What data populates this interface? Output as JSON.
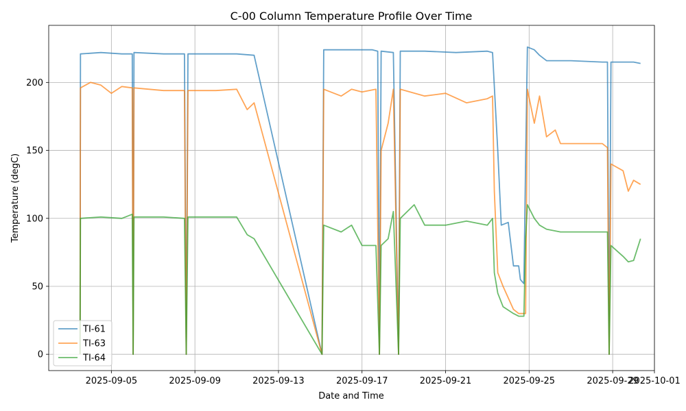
{
  "chart_data": {
    "type": "line",
    "title": "C-00 Column Temperature Profile Over Time",
    "xlabel": "Date and Time",
    "ylabel": "Temperature (degC)",
    "xlim": [
      "2025-09-02",
      "2025-10-01"
    ],
    "ylim": [
      -12,
      242
    ],
    "x_ticks": [
      "2025-09-05",
      "2025-09-09",
      "2025-09-13",
      "2025-09-17",
      "2025-09-21",
      "2025-09-25",
      "2025-09-29",
      "2025-10-01"
    ],
    "y_ticks": [
      0,
      50,
      100,
      150,
      200
    ],
    "grid": true,
    "legend_position": "bottom-left",
    "series": [
      {
        "name": "TI-61",
        "color": "#1f77b4",
        "points": [
          [
            "2025-09-03 12:00",
            0
          ],
          [
            "2025-09-03 12:30",
            221
          ],
          [
            "2025-09-04 12:00",
            222
          ],
          [
            "2025-09-05 12:00",
            221
          ],
          [
            "2025-09-06 00:00",
            221
          ],
          [
            "2025-09-06 01:00",
            0
          ],
          [
            "2025-09-06 02:00",
            222
          ],
          [
            "2025-09-07 12:00",
            221
          ],
          [
            "2025-09-08 12:00",
            221
          ],
          [
            "2025-09-08 14:00",
            0
          ],
          [
            "2025-09-08 16:00",
            221
          ],
          [
            "2025-09-10 00:00",
            221
          ],
          [
            "2025-09-11 00:00",
            221
          ],
          [
            "2025-09-11 20:00",
            220
          ],
          [
            "2025-09-15 02:00",
            0
          ],
          [
            "2025-09-15 04:00",
            224
          ],
          [
            "2025-09-16 12:00",
            224
          ],
          [
            "2025-09-17 12:00",
            224
          ],
          [
            "2025-09-17 18:00",
            223
          ],
          [
            "2025-09-17 20:00",
            0
          ],
          [
            "2025-09-17 22:00",
            223
          ],
          [
            "2025-09-18 12:00",
            222
          ],
          [
            "2025-09-18 18:00",
            0
          ],
          [
            "2025-09-18 20:00",
            223
          ],
          [
            "2025-09-20 00:00",
            223
          ],
          [
            "2025-09-21 12:00",
            222
          ],
          [
            "2025-09-23 00:00",
            223
          ],
          [
            "2025-09-23 06:00",
            222
          ],
          [
            "2025-09-23 08:00",
            197
          ],
          [
            "2025-09-23 12:00",
            150
          ],
          [
            "2025-09-23 16:00",
            95
          ],
          [
            "2025-09-24 00:00",
            97
          ],
          [
            "2025-09-24 06:00",
            65
          ],
          [
            "2025-09-24 12:00",
            65
          ],
          [
            "2025-09-24 14:00",
            55
          ],
          [
            "2025-09-24 18:00",
            52
          ],
          [
            "2025-09-24 20:00",
            142
          ],
          [
            "2025-09-24 22:00",
            226
          ],
          [
            "2025-09-25 06:00",
            224
          ],
          [
            "2025-09-25 12:00",
            220
          ],
          [
            "2025-09-25 20:00",
            216
          ],
          [
            "2025-09-27 00:00",
            216
          ],
          [
            "2025-09-28 12:00",
            215
          ],
          [
            "2025-09-28 18:00",
            215
          ],
          [
            "2025-09-28 20:00",
            0
          ],
          [
            "2025-09-28 22:00",
            215
          ],
          [
            "2025-09-30 00:00",
            215
          ],
          [
            "2025-09-30 08:00",
            214
          ]
        ]
      },
      {
        "name": "TI-63",
        "color": "#ff7f0e",
        "points": [
          [
            "2025-09-03 12:00",
            0
          ],
          [
            "2025-09-03 12:30",
            196
          ],
          [
            "2025-09-04 00:00",
            200
          ],
          [
            "2025-09-04 12:00",
            198
          ],
          [
            "2025-09-05 00:00",
            192
          ],
          [
            "2025-09-05 12:00",
            197
          ],
          [
            "2025-09-06 00:00",
            196
          ],
          [
            "2025-09-06 01:00",
            0
          ],
          [
            "2025-09-06 02:00",
            196
          ],
          [
            "2025-09-07 12:00",
            194
          ],
          [
            "2025-09-08 12:00",
            194
          ],
          [
            "2025-09-08 14:00",
            0
          ],
          [
            "2025-09-08 16:00",
            194
          ],
          [
            "2025-09-10 00:00",
            194
          ],
          [
            "2025-09-11 00:00",
            195
          ],
          [
            "2025-09-11 12:00",
            180
          ],
          [
            "2025-09-11 20:00",
            185
          ],
          [
            "2025-09-15 02:00",
            0
          ],
          [
            "2025-09-15 04:00",
            195
          ],
          [
            "2025-09-16 00:00",
            190
          ],
          [
            "2025-09-16 12:00",
            195
          ],
          [
            "2025-09-17 00:00",
            193
          ],
          [
            "2025-09-17 16:00",
            195
          ],
          [
            "2025-09-17 20:00",
            0
          ],
          [
            "2025-09-17 22:00",
            150
          ],
          [
            "2025-09-18 06:00",
            170
          ],
          [
            "2025-09-18 12:00",
            195
          ],
          [
            "2025-09-18 18:00",
            0
          ],
          [
            "2025-09-18 20:00",
            195
          ],
          [
            "2025-09-20 00:00",
            190
          ],
          [
            "2025-09-21 00:00",
            192
          ],
          [
            "2025-09-22 00:00",
            185
          ],
          [
            "2025-09-23 00:00",
            188
          ],
          [
            "2025-09-23 06:00",
            190
          ],
          [
            "2025-09-23 08:00",
            120
          ],
          [
            "2025-09-23 12:00",
            60
          ],
          [
            "2025-09-23 18:00",
            50
          ],
          [
            "2025-09-24 06:00",
            33
          ],
          [
            "2025-09-24 12:00",
            30
          ],
          [
            "2025-09-24 18:00",
            30
          ],
          [
            "2025-09-24 20:00",
            30
          ],
          [
            "2025-09-24 22:00",
            195
          ],
          [
            "2025-09-25 06:00",
            170
          ],
          [
            "2025-09-25 12:00",
            190
          ],
          [
            "2025-09-25 20:00",
            160
          ],
          [
            "2025-09-26 06:00",
            165
          ],
          [
            "2025-09-26 12:00",
            155
          ],
          [
            "2025-09-27 12:00",
            155
          ],
          [
            "2025-09-28 12:00",
            155
          ],
          [
            "2025-09-28 18:00",
            152
          ],
          [
            "2025-09-28 20:00",
            0
          ],
          [
            "2025-09-28 22:00",
            140
          ],
          [
            "2025-09-29 12:00",
            135
          ],
          [
            "2025-09-29 18:00",
            120
          ],
          [
            "2025-09-30 00:00",
            128
          ],
          [
            "2025-09-30 08:00",
            125
          ]
        ]
      },
      {
        "name": "TI-64",
        "color": "#2ca02c",
        "points": [
          [
            "2025-09-03 12:00",
            0
          ],
          [
            "2025-09-03 12:30",
            100
          ],
          [
            "2025-09-04 12:00",
            101
          ],
          [
            "2025-09-05 12:00",
            100
          ],
          [
            "2025-09-06 00:00",
            103
          ],
          [
            "2025-09-06 01:00",
            0
          ],
          [
            "2025-09-06 02:00",
            101
          ],
          [
            "2025-09-07 12:00",
            101
          ],
          [
            "2025-09-08 12:00",
            100
          ],
          [
            "2025-09-08 14:00",
            0
          ],
          [
            "2025-09-08 16:00",
            101
          ],
          [
            "2025-09-10 00:00",
            101
          ],
          [
            "2025-09-11 00:00",
            101
          ],
          [
            "2025-09-11 12:00",
            88
          ],
          [
            "2025-09-11 20:00",
            85
          ],
          [
            "2025-09-15 02:00",
            0
          ],
          [
            "2025-09-15 04:00",
            95
          ],
          [
            "2025-09-16 00:00",
            90
          ],
          [
            "2025-09-16 12:00",
            95
          ],
          [
            "2025-09-17 00:00",
            80
          ],
          [
            "2025-09-17 16:00",
            80
          ],
          [
            "2025-09-17 20:00",
            0
          ],
          [
            "2025-09-17 22:00",
            80
          ],
          [
            "2025-09-18 06:00",
            85
          ],
          [
            "2025-09-18 12:00",
            105
          ],
          [
            "2025-09-18 18:00",
            0
          ],
          [
            "2025-09-18 20:00",
            100
          ],
          [
            "2025-09-19 12:00",
            110
          ],
          [
            "2025-09-20 00:00",
            95
          ],
          [
            "2025-09-21 00:00",
            95
          ],
          [
            "2025-09-22 00:00",
            98
          ],
          [
            "2025-09-23 00:00",
            95
          ],
          [
            "2025-09-23 06:00",
            100
          ],
          [
            "2025-09-23 08:00",
            60
          ],
          [
            "2025-09-23 12:00",
            45
          ],
          [
            "2025-09-23 18:00",
            35
          ],
          [
            "2025-09-24 06:00",
            30
          ],
          [
            "2025-09-24 12:00",
            28
          ],
          [
            "2025-09-24 18:00",
            28
          ],
          [
            "2025-09-24 20:00",
            85
          ],
          [
            "2025-09-24 22:00",
            110
          ],
          [
            "2025-09-25 06:00",
            100
          ],
          [
            "2025-09-25 12:00",
            95
          ],
          [
            "2025-09-25 20:00",
            92
          ],
          [
            "2025-09-26 12:00",
            90
          ],
          [
            "2025-09-27 12:00",
            90
          ],
          [
            "2025-09-28 12:00",
            90
          ],
          [
            "2025-09-28 18:00",
            90
          ],
          [
            "2025-09-28 20:00",
            0
          ],
          [
            "2025-09-28 22:00",
            80
          ],
          [
            "2025-09-29 12:00",
            72
          ],
          [
            "2025-09-29 18:00",
            68
          ],
          [
            "2025-09-30 00:00",
            69
          ],
          [
            "2025-09-30 08:00",
            85
          ]
        ]
      }
    ]
  }
}
